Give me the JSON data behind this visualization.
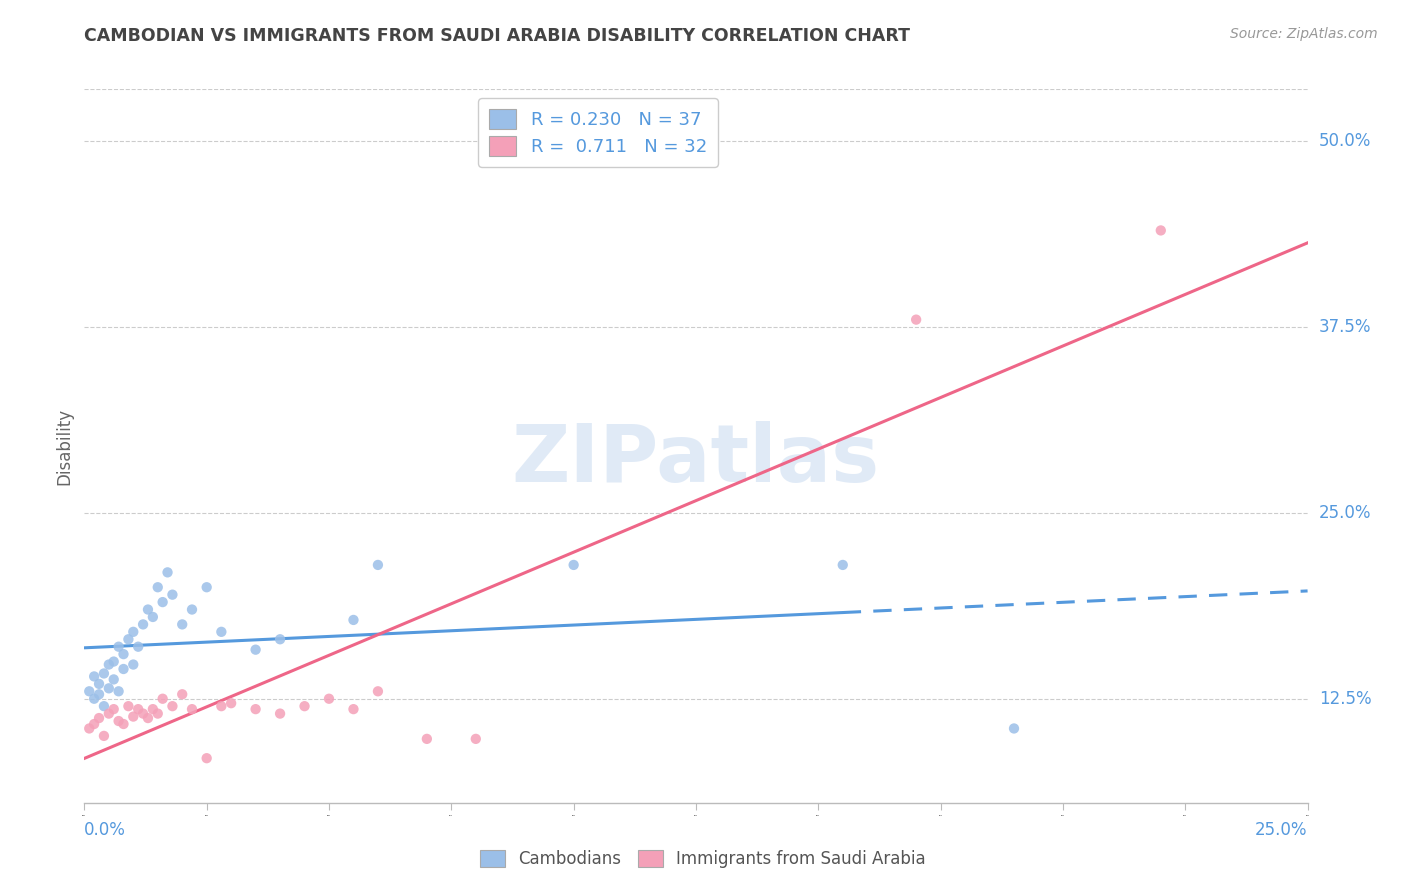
{
  "title": "CAMBODIAN VS IMMIGRANTS FROM SAUDI ARABIA DISABILITY CORRELATION CHART",
  "source": "Source: ZipAtlas.com",
  "ylabel": "Disability",
  "r1": 0.23,
  "n1": 37,
  "r2": 0.711,
  "n2": 32,
  "color1": "#9bbfe8",
  "color2": "#f4a0b8",
  "line_color1": "#5599dd",
  "line_color2": "#ee6688",
  "watermark": "ZIPatlas",
  "cambodians_x": [
    0.001,
    0.002,
    0.002,
    0.003,
    0.003,
    0.004,
    0.004,
    0.005,
    0.005,
    0.006,
    0.006,
    0.007,
    0.007,
    0.008,
    0.008,
    0.009,
    0.01,
    0.01,
    0.011,
    0.012,
    0.013,
    0.014,
    0.015,
    0.016,
    0.017,
    0.018,
    0.02,
    0.022,
    0.025,
    0.028,
    0.035,
    0.04,
    0.055,
    0.06,
    0.1,
    0.155,
    0.19
  ],
  "cambodians_y": [
    0.13,
    0.125,
    0.14,
    0.128,
    0.135,
    0.12,
    0.142,
    0.132,
    0.148,
    0.138,
    0.15,
    0.13,
    0.16,
    0.145,
    0.155,
    0.165,
    0.148,
    0.17,
    0.16,
    0.175,
    0.185,
    0.18,
    0.2,
    0.19,
    0.21,
    0.195,
    0.175,
    0.185,
    0.2,
    0.17,
    0.158,
    0.165,
    0.178,
    0.215,
    0.215,
    0.215,
    0.105
  ],
  "saudi_x": [
    0.001,
    0.002,
    0.003,
    0.004,
    0.005,
    0.006,
    0.007,
    0.008,
    0.009,
    0.01,
    0.011,
    0.012,
    0.013,
    0.014,
    0.015,
    0.016,
    0.018,
    0.02,
    0.022,
    0.025,
    0.028,
    0.03,
    0.035,
    0.04,
    0.045,
    0.05,
    0.055,
    0.06,
    0.07,
    0.08,
    0.17,
    0.22
  ],
  "saudi_y": [
    0.105,
    0.108,
    0.112,
    0.1,
    0.115,
    0.118,
    0.11,
    0.108,
    0.12,
    0.113,
    0.118,
    0.115,
    0.112,
    0.118,
    0.115,
    0.125,
    0.12,
    0.128,
    0.118,
    0.085,
    0.12,
    0.122,
    0.118,
    0.115,
    0.12,
    0.125,
    0.118,
    0.13,
    0.098,
    0.098,
    0.38,
    0.44
  ],
  "xmin": 0.0,
  "xmax": 0.25,
  "ymin": 0.055,
  "ymax": 0.535,
  "yticks": [
    0.125,
    0.25,
    0.375,
    0.5
  ],
  "ytick_labels": [
    "12.5%",
    "25.0%",
    "37.5%",
    "50.0%"
  ],
  "solid_cutoff": 0.155,
  "background_color": "#ffffff",
  "grid_color": "#cccccc"
}
